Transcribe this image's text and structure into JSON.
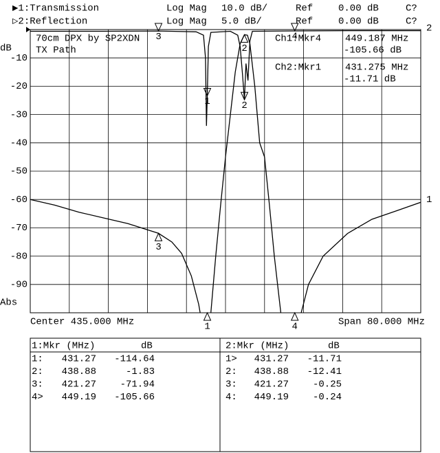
{
  "header": {
    "rows": [
      [
        "▶1:Transmission",
        "Log Mag",
        "10.0 dB/",
        "Ref",
        "0.00 dB",
        "C?"
      ],
      [
        "▷2:Reflection",
        "Log Mag",
        "5.0 dB/",
        "Ref",
        "0.00 dB",
        "C?"
      ]
    ]
  },
  "chart_data": {
    "type": "line",
    "title": "70cm DPX by SP2XDN",
    "subtitle": "TX Path",
    "y_unit": "dB",
    "y_format": "Abs",
    "center_label": "Center 435.000 MHz",
    "span_label": "Span 80.000 MHz",
    "xlim": [
      395,
      475
    ],
    "ylim": [
      -100,
      0
    ],
    "y2lim": [
      -50,
      0
    ],
    "yticks": [
      -10,
      -20,
      -30,
      -40,
      -50,
      -60,
      -70,
      -80,
      -90
    ],
    "grid": true,
    "marker_labels": [
      "1",
      "2",
      "3",
      "4"
    ],
    "series": [
      {
        "name": "Transmission",
        "trace_label": "1",
        "color": "#000000",
        "x": [
          395,
          400,
          405,
          410,
          415,
          421.27,
          424,
          426,
          428,
          429.5,
          431.27,
          432,
          433,
          434,
          435,
          436,
          437,
          438,
          438.88,
          439.5,
          440,
          441,
          442,
          443,
          444,
          445,
          446,
          447,
          449.19,
          450.5,
          452,
          455,
          460,
          465,
          470,
          475
        ],
        "values": [
          -60,
          -62,
          -64.5,
          -66.5,
          -68.5,
          -71.94,
          -75,
          -79,
          -87,
          -97,
          -114.64,
          -100,
          -80,
          -62,
          -45,
          -30,
          -15,
          -5,
          -1.83,
          -2,
          -5,
          -20,
          -40,
          -45,
          -62,
          -80,
          -95,
          -110,
          -105.66,
          -100,
          -90,
          -80,
          -72,
          -67,
          -64,
          -61
        ]
      },
      {
        "name": "Reflection",
        "trace_label": "2",
        "color": "#000000",
        "axis": "y2",
        "x": [
          395,
          410,
          421.27,
          429,
          430.5,
          430.9,
          431.1,
          431.27,
          431.5,
          432,
          436,
          437.5,
          438,
          438.5,
          438.88,
          439.2,
          439.6,
          440,
          440.5,
          449.19,
          460,
          475
        ],
        "values": [
          -0.3,
          -0.3,
          -0.25,
          -0.4,
          -1,
          -5,
          -17,
          -11.71,
          -3,
          -0.5,
          -0.3,
          -1,
          -3,
          -8,
          -12.41,
          -6,
          -9,
          -2,
          -0.3,
          -0.24,
          -0.2,
          -0.2
        ]
      }
    ],
    "readouts": [
      {
        "channel": "Ch1:Mkr4",
        "frequency": "449.187 MHz",
        "value": "-105.66 dB"
      },
      {
        "channel": "Ch2:Mkr1",
        "frequency": "431.275 MHz",
        "value": "-11.71 dB"
      }
    ]
  },
  "marker_tables": [
    {
      "headers": [
        "1:Mkr (MHz)",
        "dB"
      ],
      "rows": [
        [
          "1:",
          431.27,
          -114.64
        ],
        [
          "2:",
          438.88,
          -1.83
        ],
        [
          "3:",
          421.27,
          -71.94
        ],
        [
          "4>",
          449.19,
          -105.66
        ]
      ]
    },
    {
      "headers": [
        "2:Mkr (MHz)",
        "dB"
      ],
      "rows": [
        [
          "1>",
          431.27,
          -11.71
        ],
        [
          "2:",
          438.88,
          -12.41
        ],
        [
          "3:",
          421.27,
          -0.25
        ],
        [
          "4:",
          449.19,
          -0.24
        ]
      ]
    }
  ]
}
